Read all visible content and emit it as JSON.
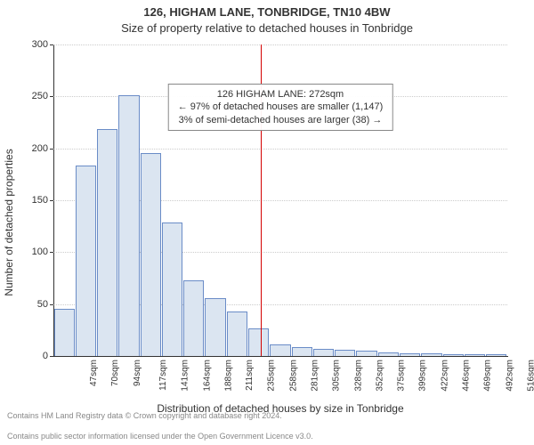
{
  "title": "126, HIGHAM LANE, TONBRIDGE, TN10 4BW",
  "subtitle": "Size of property relative to detached houses in Tonbridge",
  "chart": {
    "type": "histogram",
    "xlabel": "Distribution of detached houses by size in Tonbridge",
    "ylabel": "Number of detached properties",
    "y_max": 300,
    "y_ticks": [
      0,
      50,
      100,
      150,
      200,
      250,
      300
    ],
    "x_tick_labels": [
      "47sqm",
      "70sqm",
      "94sqm",
      "117sqm",
      "141sqm",
      "164sqm",
      "188sqm",
      "211sqm",
      "235sqm",
      "258sqm",
      "281sqm",
      "305sqm",
      "328sqm",
      "352sqm",
      "375sqm",
      "399sqm",
      "422sqm",
      "446sqm",
      "469sqm",
      "492sqm",
      "516sqm"
    ],
    "x_tick_rotation": -90,
    "values": [
      45,
      183,
      218,
      250,
      195,
      128,
      72,
      55,
      42,
      26,
      10,
      8,
      6,
      5,
      4,
      3,
      2,
      2,
      1,
      1,
      1
    ],
    "bar_fill": "#dbe5f1",
    "bar_stroke": "#6a8cc7",
    "grid_color": "#cccccc",
    "axis_color": "#333333",
    "background_color": "#ffffff",
    "tick_fontsize": 11,
    "label_fontsize": 12,
    "reference_line": {
      "position_index": 9.6,
      "color": "#d40000"
    },
    "annotation": {
      "line1": "126 HIGHAM LANE: 272sqm",
      "line2": "← 97% of detached houses are smaller (1,147)",
      "line3": "3% of semi-detached houses are larger (38) →",
      "border_color": "#888888",
      "fontsize": 11
    }
  },
  "footer": {
    "line1": "Contains HM Land Registry data © Crown copyright and database right 2024.",
    "line2": "Contains public sector information licensed under the Open Government Licence v3.0.",
    "color": "#888888"
  }
}
